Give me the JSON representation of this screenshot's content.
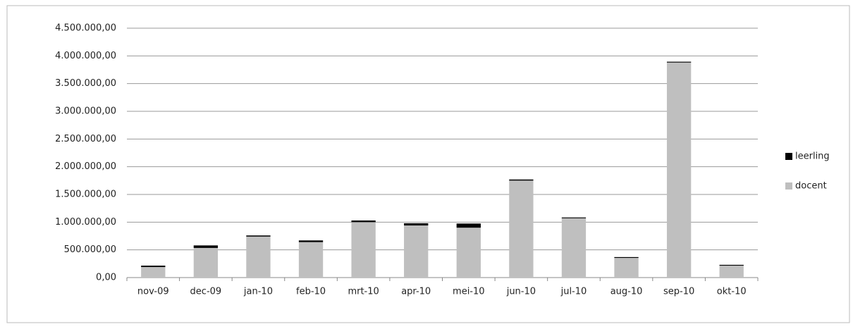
{
  "chart_data": {
    "type": "stacked_bar",
    "categories": [
      "nov-09",
      "dec-09",
      "jan-10",
      "feb-10",
      "mrt-10",
      "apr-10",
      "mei-10",
      "jun-10",
      "jul-10",
      "aug-10",
      "sep-10",
      "okt-10"
    ],
    "series": [
      {
        "name": "docent",
        "color": "#bfbfbf",
        "values": [
          190000,
          535000,
          740000,
          640000,
          1000000,
          940000,
          900000,
          1750000,
          1070000,
          355000,
          3880000,
          215000
        ]
      },
      {
        "name": "leerling",
        "color": "#000000",
        "values": [
          25000,
          45000,
          20000,
          30000,
          30000,
          40000,
          75000,
          20000,
          15000,
          15000,
          15000,
          15000
        ]
      }
    ],
    "ylim": [
      0,
      4500000
    ],
    "yticks": [
      {
        "value": 0,
        "label": "0,00"
      },
      {
        "value": 500000,
        "label": "500.000,00"
      },
      {
        "value": 1000000,
        "label": "1.000.000,00"
      },
      {
        "value": 1500000,
        "label": "1.500.000,00"
      },
      {
        "value": 2000000,
        "label": "2.000.000,00"
      },
      {
        "value": 2500000,
        "label": "2.500.000,00"
      },
      {
        "value": 3000000,
        "label": "3.000.000,00"
      },
      {
        "value": 3500000,
        "label": "3.500.000,00"
      },
      {
        "value": 4000000,
        "label": "4.000.000,00"
      },
      {
        "value": 4500000,
        "label": "4.500.000,00"
      }
    ],
    "grid": true,
    "legend": "right"
  }
}
